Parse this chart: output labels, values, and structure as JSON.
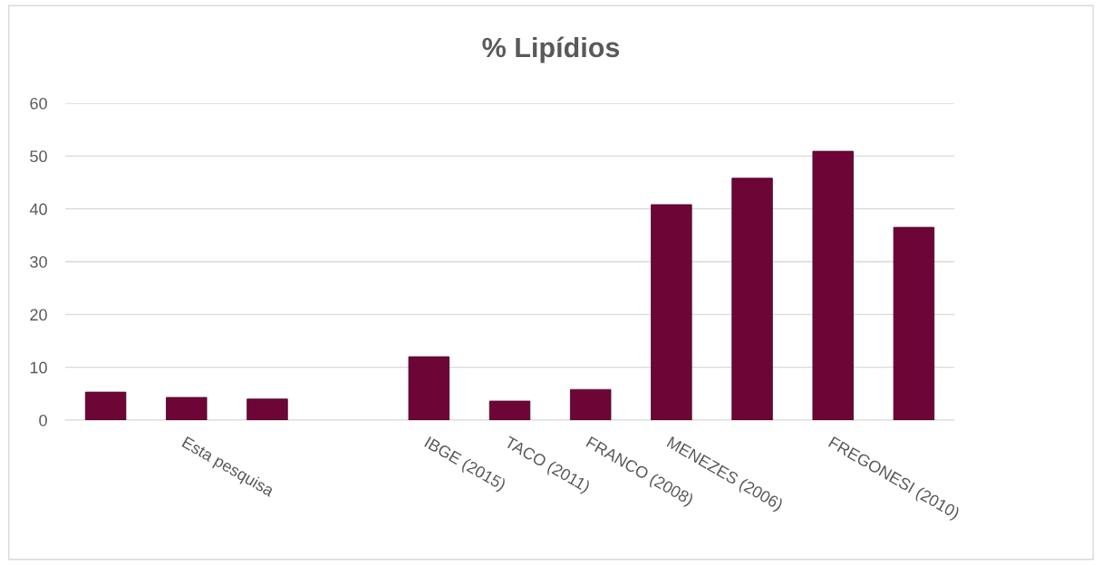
{
  "chart_data": {
    "type": "bar",
    "title": "% Lipídios",
    "categories": [
      null,
      "Esta pesquisa",
      null,
      null,
      "IBGE (2015)",
      "TACO (2011)",
      "FRANCO (2008)",
      "MENEZES (2006)",
      null,
      "FREGONESI (2010)",
      null
    ],
    "values": [
      5.3,
      4.3,
      4.0,
      null,
      12.0,
      3.6,
      5.8,
      40.8,
      45.8,
      50.9,
      36.5
    ],
    "color": "#6d0636",
    "ylim": [
      0,
      60
    ],
    "yticks": [
      0,
      10,
      20,
      30,
      40,
      50,
      60
    ],
    "grid": "y",
    "legend": false
  }
}
